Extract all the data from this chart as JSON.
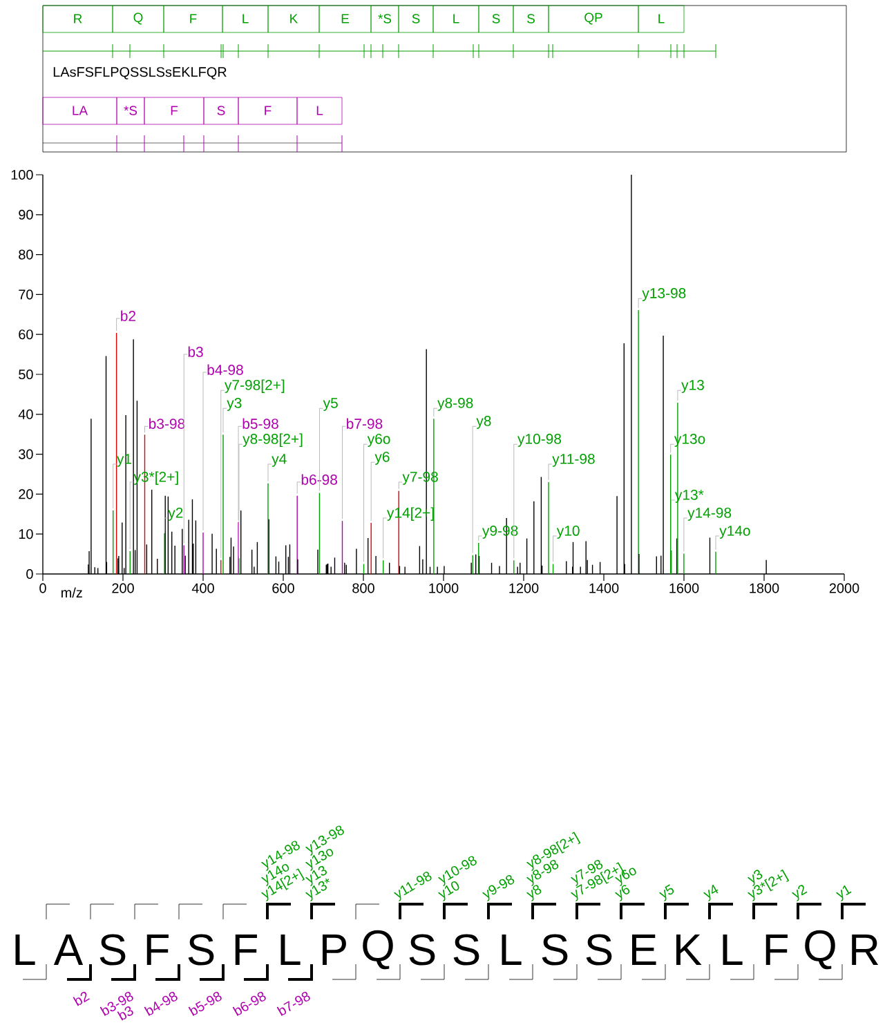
{
  "chart_data": {
    "type": "bar",
    "xlabel": "m/z",
    "xlim": [
      0,
      2000
    ],
    "xticks": [
      0,
      200,
      400,
      600,
      800,
      1000,
      1200,
      1400,
      1600,
      1800,
      2000
    ],
    "ylim": [
      0,
      100
    ],
    "yticks": [
      0,
      10,
      20,
      30,
      40,
      50,
      60,
      70,
      80,
      90,
      100
    ],
    "x": [
      113.5,
      115.6,
      120.5,
      129.7,
      137.4,
      157.8,
      159.2,
      175.4,
      183.8,
      187.4,
      189.5,
      197.9,
      202.9,
      207.1,
      217.7,
      226.1,
      230.4,
      235.2,
      254.3,
      259.2,
      271.9,
      285.8,
      303.6,
      305.5,
      312.7,
      321.9,
      329.6,
      347.9,
      352.1,
      355.6,
      364.1,
      373.2,
      375.4,
      381.7,
      400.0,
      422.5,
      433.1,
      444.4,
      450.0,
      466.9,
      469.7,
      476.0,
      488.0,
      489.5,
      494.3,
      521.8,
      527.4,
      535.2,
      562.0,
      564.1,
      581.7,
      588.8,
      606.4,
      612.7,
      616.3,
      634.8,
      636.2,
      686.2,
      690.4,
      707.3,
      709.4,
      711.5,
      719.3,
      728.4,
      747.4,
      753.1,
      757.3,
      782.6,
      800.9,
      811.5,
      819.3,
      831.2,
      849.5,
      865.0,
      888.3,
      890.4,
      903.7,
      940.3,
      948.1,
      957.2,
      966.4,
      975.6,
      984.7,
      1001.6,
      1069.2,
      1072.7,
      1080.5,
      1087.5,
      1088.9,
      1119.9,
      1139.6,
      1157.2,
      1175.5,
      1184.7,
      1191.0,
      1207.9,
      1225.5,
      1243.8,
      1245.9,
      1262.1,
      1273.4,
      1306.5,
      1321.9,
      1323.3,
      1341.7,
      1355.5,
      1359.0,
      1371.7,
      1390.7,
      1432.9,
      1450.5,
      1452.0,
      1468.8,
      1486.4,
      1487.8,
      1531.5,
      1542.7,
      1548.4,
      1566.7,
      1568.5,
      1582.2,
      1584.3,
      1599.8,
      1664.6,
      1679.3,
      1805.4
    ],
    "values": [
      2.4,
      5.7,
      38.9,
      1.7,
      1.5,
      54.6,
      3,
      15.9,
      60.4,
      3.9,
      4.5,
      12.9,
      1.5,
      39.8,
      5.7,
      58.8,
      6,
      43.4,
      34.9,
      7.4,
      21.1,
      3.8,
      10.2,
      19.6,
      19.4,
      10.6,
      7.1,
      11.3,
      7.2,
      4.6,
      13.6,
      18.7,
      7.6,
      13.4,
      10.4,
      10.1,
      6.3,
      3.5,
      34.9,
      4.3,
      9.1,
      6.9,
      13,
      3.9,
      15.9,
      6.1,
      1.8,
      8,
      22.7,
      13.7,
      4.4,
      3.1,
      7.2,
      4.3,
      7.4,
      19.6,
      3.7,
      6.1,
      20.3,
      2.3,
      2.5,
      2.6,
      1.8,
      4.1,
      13.3,
      2.8,
      2.3,
      6.3,
      2.5,
      9,
      12.8,
      4.5,
      3.4,
      2.8,
      20.8,
      2,
      1.8,
      7,
      3.7,
      56.3,
      1.8,
      38.9,
      1.8,
      2,
      2.8,
      4.7,
      4.9,
      7.8,
      4.5,
      2.8,
      2,
      14,
      3.4,
      1.8,
      2.8,
      8.9,
      18.2,
      24.3,
      2.1,
      23,
      2.5,
      3.2,
      1.8,
      8,
      1.8,
      8.2,
      3.5,
      2.3,
      3,
      19.5,
      57.8,
      2.5,
      100,
      66.1,
      5,
      4.4,
      4.6,
      59.7,
      29.9,
      5.9,
      8.9,
      42.9,
      5.1,
      9.1,
      5.6,
      3.5
    ],
    "colors": [
      "#000000",
      "#000000",
      "#000000",
      "#000000",
      "#000000",
      "#000000",
      "#000000",
      "#00a000",
      "#e00000",
      "#000000",
      "#000000",
      "#000000",
      "#000000",
      "#000000",
      "#00a000",
      "#000000",
      "#000000",
      "#000000",
      "#e00000",
      "#000000",
      "#000000",
      "#000000",
      "#00a000",
      "#000000",
      "#000000",
      "#000000",
      "#000000",
      "#000000",
      "#b000b0",
      "#000000",
      "#000000",
      "#000000",
      "#000000",
      "#000000",
      "#b000b0",
      "#000000",
      "#000000",
      "#e00000",
      "#00a000",
      "#000000",
      "#000000",
      "#000000",
      "#b000b0",
      "#00a000",
      "#000000",
      "#000000",
      "#000000",
      "#000000",
      "#00a000",
      "#000000",
      "#000000",
      "#000000",
      "#000000",
      "#000000",
      "#000000",
      "#b000b0",
      "#000000",
      "#000000",
      "#00a000",
      "#000000",
      "#000000",
      "#000000",
      "#000000",
      "#000000",
      "#b000b0",
      "#000000",
      "#000000",
      "#000000",
      "#00a000",
      "#000000",
      "#e00000",
      "#000000",
      "#00a000",
      "#000000",
      "#e00000",
      "#000000",
      "#000000",
      "#000000",
      "#000000",
      "#000000",
      "#000000",
      "#00a000",
      "#000000",
      "#000000",
      "#000000",
      "#00a000",
      "#000000",
      "#00a000",
      "#000000",
      "#000000",
      "#000000",
      "#000000",
      "#00a000",
      "#000000",
      "#000000",
      "#000000",
      "#000000",
      "#000000",
      "#000000",
      "#00a000",
      "#00a000",
      "#000000",
      "#000000",
      "#000000",
      "#000000",
      "#000000",
      "#000000",
      "#000000",
      "#000000",
      "#000000",
      "#000000",
      "#000000",
      "#000000",
      "#00a000",
      "#000000",
      "#000000",
      "#000000",
      "#000000",
      "#00a000",
      "#00a000",
      "#000000",
      "#00a000",
      "#00a000",
      "#000000",
      "#00a000",
      "#000000"
    ],
    "annotations": [
      {
        "text": "y1",
        "x": 175.4,
        "y": 15.9
      },
      {
        "text": "b2",
        "x": 183.8,
        "y": 60.4
      },
      {
        "text": "y3*[2+]",
        "x": 217.7,
        "y": 5.7
      },
      {
        "text": "b3-98",
        "x": 254.3,
        "y": 34.9
      },
      {
        "text": "y2",
        "x": 303.6,
        "y": 10.2
      },
      {
        "text": "b3",
        "x": 352.1,
        "y": 7.2
      },
      {
        "text": "b4-98",
        "x": 400.0,
        "y": 10.4
      },
      {
        "text": "y7-98[2+]",
        "x": 444.4,
        "y": 3.5
      },
      {
        "text": "y3",
        "x": 450.0,
        "y": 34.9
      },
      {
        "text": "b5-98",
        "x": 488.0,
        "y": 13
      },
      {
        "text": "y8-98[2+]",
        "x": 489.5,
        "y": 3.9
      },
      {
        "text": "y4",
        "x": 562.0,
        "y": 22.7
      },
      {
        "text": "b6-98",
        "x": 634.8,
        "y": 19.6
      },
      {
        "text": "y5",
        "x": 690.4,
        "y": 20.3
      },
      {
        "text": "b7-98",
        "x": 747.4,
        "y": 13.3
      },
      {
        "text": "y6o",
        "x": 800.9,
        "y": 2.5
      },
      {
        "text": "y6",
        "x": 819.3,
        "y": 12.8
      },
      {
        "text": "y14[2+]",
        "x": 849.5,
        "y": 3.4
      },
      {
        "text": "y7-98",
        "x": 888.3,
        "y": 20.8
      },
      {
        "text": "y8-98",
        "x": 975.6,
        "y": 38.9
      },
      {
        "text": "y8",
        "x": 1072.7,
        "y": 4.7
      },
      {
        "text": "y9-98",
        "x": 1087.5,
        "y": 7.8
      },
      {
        "text": "y10-98",
        "x": 1175.5,
        "y": 3.4
      },
      {
        "text": "y11-98",
        "x": 1262.1,
        "y": 23
      },
      {
        "text": "y10",
        "x": 1273.4,
        "y": 2.5
      },
      {
        "text": "y13-98",
        "x": 1486.4,
        "y": 66.1
      },
      {
        "text": "y13o",
        "x": 1566.7,
        "y": 29.9
      },
      {
        "text": "y13*",
        "x": 1568.5,
        "y": 5.9
      },
      {
        "text": "y13",
        "x": 1584.3,
        "y": 42.9
      },
      {
        "text": "y14-98",
        "x": 1599.8,
        "y": 5.1
      },
      {
        "text": "y14o",
        "x": 1679.3,
        "y": 5.6
      },
      "LAsFSFLPQSSLSsEKLFQR",
      "R",
      "Q",
      "F",
      "L",
      "K",
      "E",
      "*S",
      "S",
      "L",
      "S",
      "S",
      "QP",
      "L",
      "LA",
      "*S",
      "F",
      "S",
      "F",
      "L",
      "L",
      "A",
      "S",
      "F",
      "S",
      "F",
      "L",
      "P",
      "Q",
      "S",
      "S",
      "L",
      "S",
      "S",
      "E",
      "K",
      "L",
      "F",
      "Q",
      "R",
      "y14[2+]",
      "y14o",
      "y14-98",
      "y13*",
      "y13",
      "y13o",
      "y13-98",
      "y11-98",
      "y10",
      "y10-98",
      "y9-98",
      "y8",
      "y8-98",
      "y8-98[2+]",
      "y7-98[2+]",
      "y7-98",
      "y6",
      "y6o",
      "y5",
      "y4",
      "y3*[2+]",
      "y3",
      "y2",
      "y1",
      "b2",
      "b3-98",
      "b3",
      "b4-98",
      "b5-98",
      "b6-98",
      "b7-98"
    ]
  }
}
